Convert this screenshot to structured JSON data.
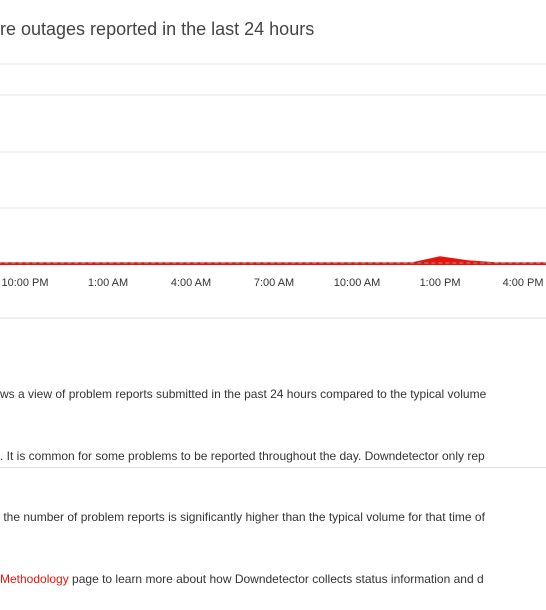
{
  "chart_data": {
    "type": "area",
    "title": "re outages reported in the last 24 hours",
    "categories": [
      null,
      "10:00 PM",
      null,
      null,
      "1:00 AM",
      null,
      null,
      "4:00 AM",
      null,
      null,
      "7:00 AM",
      null,
      null,
      "10:00 AM",
      null,
      null,
      "1:00 PM",
      null,
      null,
      "4:00 PM",
      null
    ],
    "series": [
      {
        "color": "#e8140c",
        "values": [
          1,
          1,
          1,
          1,
          1,
          1,
          1,
          1,
          1,
          1,
          1,
          1,
          1,
          1,
          1,
          1,
          4,
          2,
          1,
          1,
          1
        ]
      },
      {
        "color": "#999999",
        "values": [
          1,
          1,
          1,
          1,
          1,
          1,
          1,
          1,
          1,
          1,
          1,
          1,
          1,
          1,
          1,
          1,
          1,
          1,
          1,
          1,
          1
        ]
      }
    ],
    "ylim": [
      0,
      100
    ]
  },
  "description": {
    "lines": [
      "ws a view of problem reports submitted in the past 24 hours compared to the typical volume",
      ". It is common for some problems to be reported throughout the day. Downdetector only rep",
      " the number of problem reports is significantly higher than the typical volume for that time of"
    ],
    "link": "Methodology",
    "link_rest": " page to learn more about how Downdetector collects status information and d"
  }
}
